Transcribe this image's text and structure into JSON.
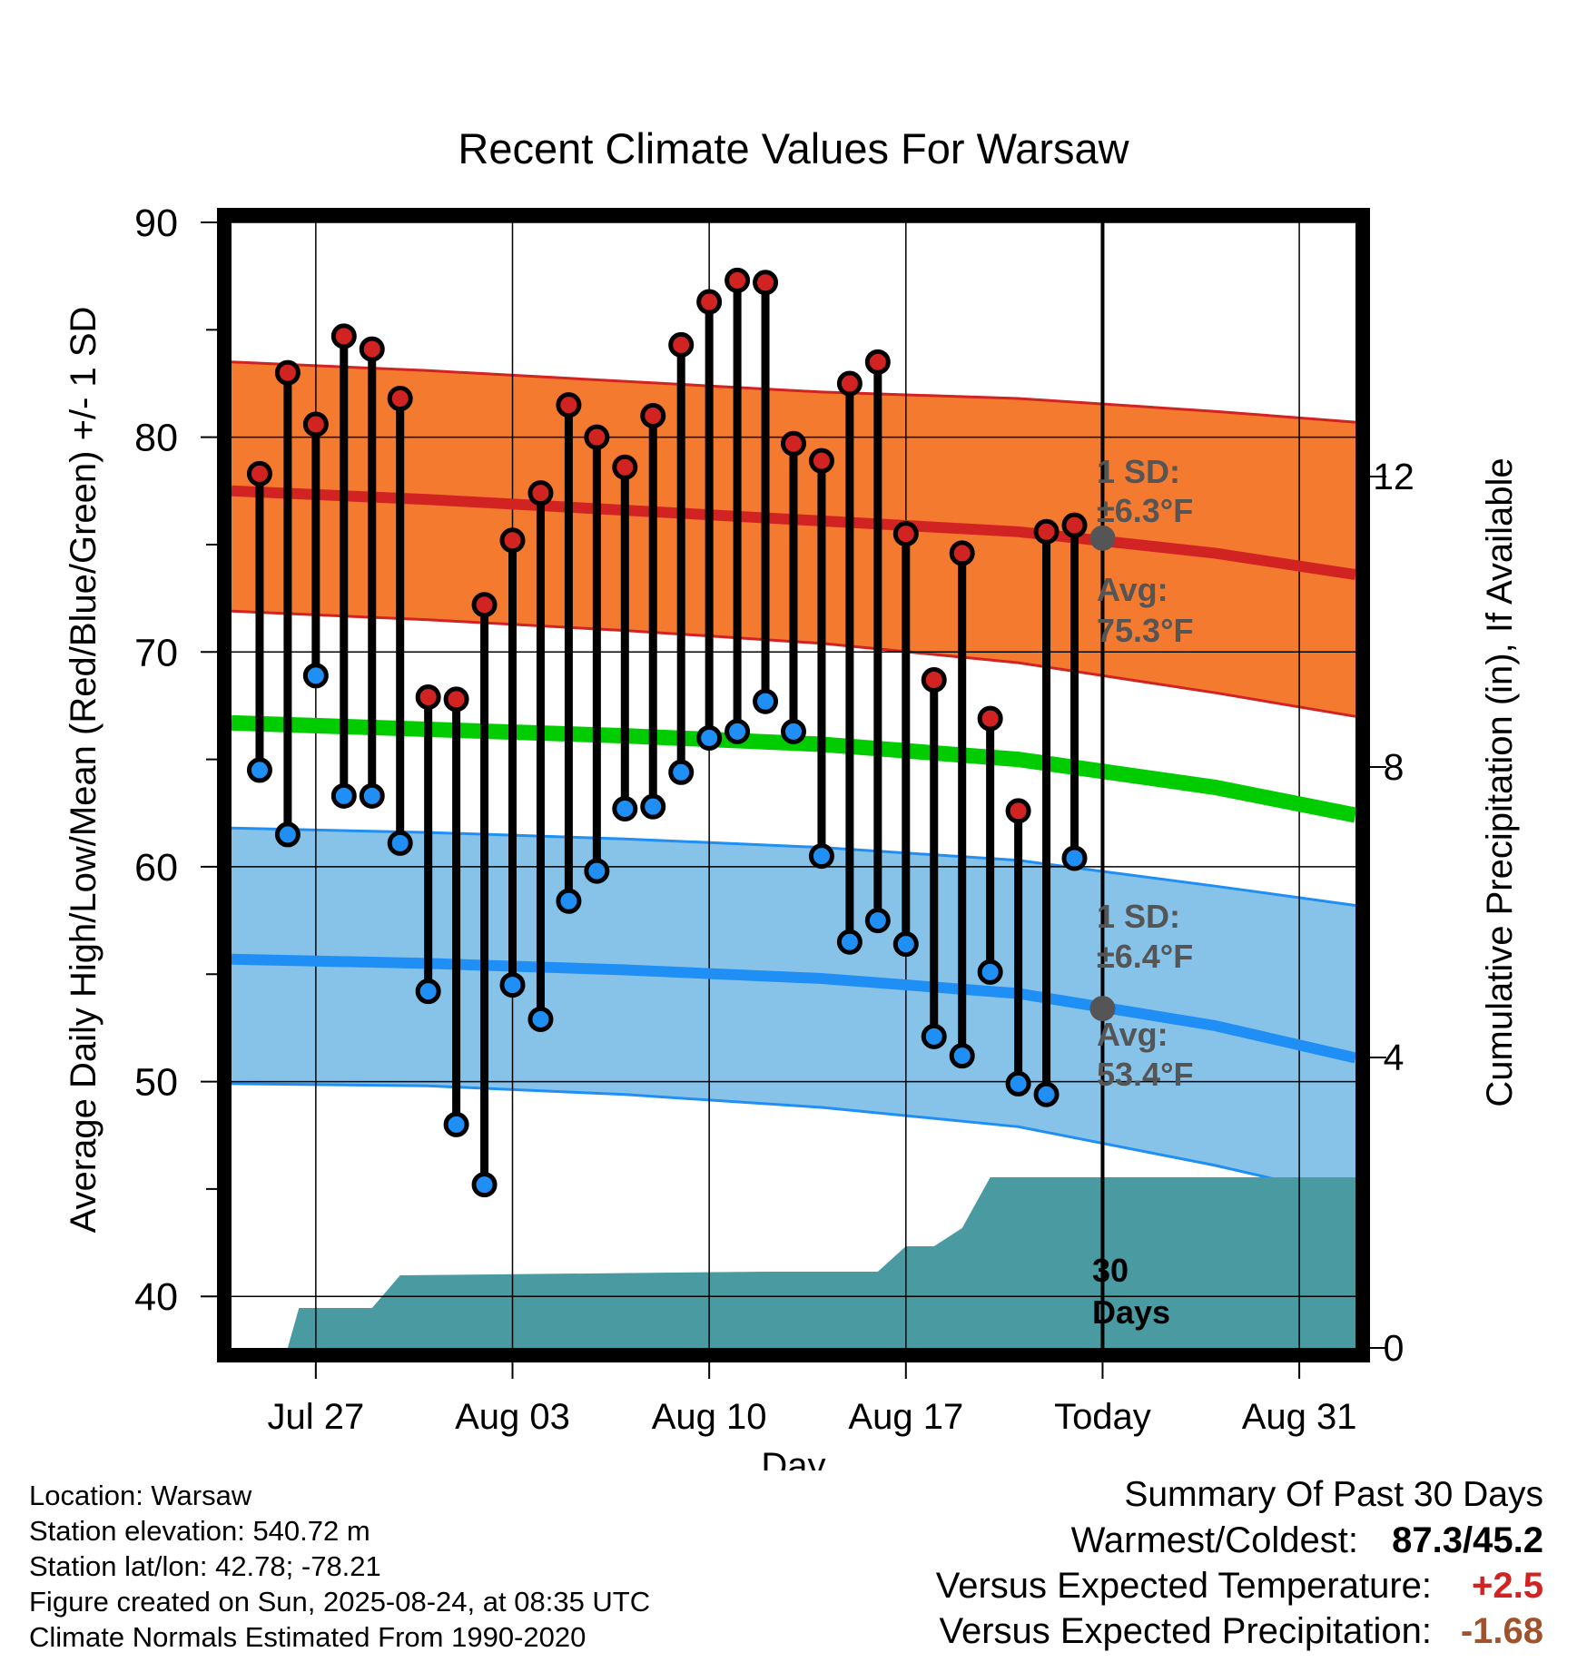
{
  "colors": {
    "high_band": "#f47a30",
    "high_line": "#d22323",
    "mean_line": "#00cc00",
    "low_band": "#87c3e8",
    "low_line": "#1f8ff5",
    "precip": "#4a9aa1",
    "high_dot": "#d22323",
    "low_dot": "#1f8ff5",
    "annotation": "#555555",
    "positive_temp": "#d22323",
    "negative_precip": "#a0522d"
  },
  "chart_data": {
    "type": "line",
    "title": "Recent Climate Values For Warsaw",
    "xlabel": "Day",
    "ylabel": "Average Daily High/Low/Mean (Red/Blue/Green) +/- 1 SD",
    "y2label": "Cumulative Precipitation (in), If Available",
    "ylim": [
      37.6,
      90
    ],
    "y2lim": [
      0,
      15.5
    ],
    "xlim": [
      "2025-07-24",
      "2025-09-02"
    ],
    "y_ticks": [
      "40",
      "50",
      "60",
      "70",
      "80",
      "90"
    ],
    "y2_ticks": [
      "0",
      "4",
      "8",
      "12"
    ],
    "x_ticks": [
      {
        "date": "2025-07-27",
        "label": "Jul 27"
      },
      {
        "date": "2025-08-03",
        "label": "Aug 03"
      },
      {
        "date": "2025-08-10",
        "label": "Aug 10"
      },
      {
        "date": "2025-08-17",
        "label": "Aug 17"
      },
      {
        "date": "2025-08-24",
        "label": "Today"
      },
      {
        "date": "2025-08-31",
        "label": "Aug 31"
      }
    ],
    "today": "2025-08-24",
    "grid": true,
    "normals": {
      "dates": [
        "2025-07-24",
        "2025-07-31",
        "2025-08-07",
        "2025-08-14",
        "2025-08-21",
        "2025-08-28",
        "2025-09-02"
      ],
      "high_avg": [
        77.5,
        77.1,
        76.6,
        76.1,
        75.6,
        74.6,
        73.6
      ],
      "high_upper": [
        83.5,
        83.1,
        82.6,
        82.1,
        81.8,
        81.2,
        80.7
      ],
      "high_lower": [
        71.9,
        71.5,
        71.0,
        70.4,
        69.5,
        68.1,
        67.0
      ],
      "mean": [
        66.7,
        66.4,
        66.1,
        65.7,
        65.0,
        63.7,
        62.4
      ],
      "low_avg": [
        55.7,
        55.5,
        55.2,
        54.8,
        54.1,
        52.6,
        51.1
      ],
      "low_upper": [
        61.8,
        61.6,
        61.3,
        60.9,
        60.3,
        59.1,
        58.2
      ],
      "low_lower": [
        49.9,
        49.8,
        49.4,
        48.8,
        47.9,
        46.1,
        44.6
      ]
    },
    "series": [
      {
        "name": "High",
        "dates": [
          "2025-07-25",
          "2025-07-26",
          "2025-07-27",
          "2025-07-28",
          "2025-07-29",
          "2025-07-30",
          "2025-07-31",
          "2025-08-01",
          "2025-08-02",
          "2025-08-03",
          "2025-08-04",
          "2025-08-05",
          "2025-08-06",
          "2025-08-07",
          "2025-08-08",
          "2025-08-09",
          "2025-08-10",
          "2025-08-11",
          "2025-08-12",
          "2025-08-13",
          "2025-08-14",
          "2025-08-15",
          "2025-08-16",
          "2025-08-17",
          "2025-08-18",
          "2025-08-19",
          "2025-08-20",
          "2025-08-21",
          "2025-08-22",
          "2025-08-23"
        ],
        "values": [
          78.3,
          83.0,
          80.6,
          84.7,
          84.1,
          81.8,
          67.9,
          67.8,
          72.2,
          75.2,
          77.4,
          81.5,
          80.0,
          78.6,
          81.0,
          84.3,
          86.3,
          87.3,
          87.2,
          79.7,
          78.9,
          82.5,
          83.5,
          75.5,
          68.7,
          74.6,
          66.9,
          62.6,
          75.6,
          75.9
        ]
      },
      {
        "name": "Low",
        "dates": [
          "2025-07-25",
          "2025-07-26",
          "2025-07-27",
          "2025-07-28",
          "2025-07-29",
          "2025-07-30",
          "2025-07-31",
          "2025-08-01",
          "2025-08-02",
          "2025-08-03",
          "2025-08-04",
          "2025-08-05",
          "2025-08-06",
          "2025-08-07",
          "2025-08-08",
          "2025-08-09",
          "2025-08-10",
          "2025-08-11",
          "2025-08-12",
          "2025-08-13",
          "2025-08-14",
          "2025-08-15",
          "2025-08-16",
          "2025-08-17",
          "2025-08-18",
          "2025-08-19",
          "2025-08-20",
          "2025-08-21",
          "2025-08-22",
          "2025-08-23"
        ],
        "values": [
          64.5,
          61.5,
          68.9,
          63.3,
          63.3,
          61.1,
          54.2,
          48.0,
          45.2,
          54.5,
          52.9,
          58.4,
          59.8,
          62.7,
          62.8,
          64.4,
          66.0,
          66.3,
          67.7,
          66.3,
          60.5,
          56.5,
          57.5,
          56.4,
          52.1,
          51.2,
          55.1,
          49.9,
          49.4,
          60.4
        ]
      },
      {
        "name": "Cumulative Precipitation",
        "dates": [
          "2025-07-24",
          "2025-07-26",
          "2025-07-26.4",
          "2025-07-29",
          "2025-07-30",
          "2025-08-12",
          "2025-08-16",
          "2025-08-17",
          "2025-08-18",
          "2025-08-19",
          "2025-08-20",
          "2025-09-02"
        ],
        "values": [
          0,
          0,
          0.55,
          0.55,
          1.0,
          1.05,
          1.05,
          1.4,
          1.4,
          1.65,
          2.35,
          2.35
        ]
      }
    ]
  },
  "annotations": {
    "high_sd_label": "1 SD:",
    "high_sd_value": "±6.3°F",
    "high_avg_label": "Avg:",
    "high_avg_value": "75.3°F",
    "low_sd_label": "1 SD:",
    "low_sd_value": "±6.4°F",
    "low_avg_label": "Avg:",
    "low_avg_value": "53.4°F",
    "precip_days_1": "30",
    "precip_days_2": "Days"
  },
  "footer": {
    "location": "Location: Warsaw",
    "elevation": "Station elevation: 540.72 m",
    "latlon": "Station lat/lon: 42.78; -78.21",
    "created": "Figure created on Sun, 2025-08-24, at 08:35 UTC",
    "normals": "Climate Normals Estimated From 1990-2020"
  },
  "summary": {
    "title": "Summary Of Past 30 Days",
    "warm_cold_label": "Warmest/Coldest:",
    "warm_cold_value": "87.3/45.2",
    "temp_label": "Versus Expected Temperature:",
    "temp_value": "+2.5",
    "precip_label": "Versus Expected Precipitation:",
    "precip_value": "-1.68"
  }
}
